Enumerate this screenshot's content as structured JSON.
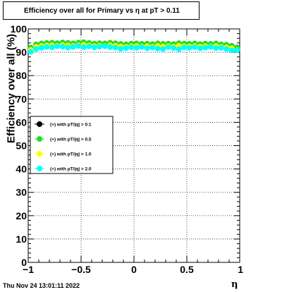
{
  "title": "Efficiency over all for Primary vs   η at pT > 0.11",
  "timestamp": "Thu Nov 24 13:01:11 2022",
  "chart_data": {
    "type": "scatter",
    "title": "Efficiency over all for Primary vs   η at pT > 0.11",
    "xlabel": "η",
    "ylabel": "Efficiency over all (%)",
    "xlim": [
      -1,
      1
    ],
    "ylim": [
      0,
      100
    ],
    "xticks": [
      "−1",
      "−0.5",
      "0",
      "0.5",
      "1"
    ],
    "yticks": [
      "0",
      "10",
      "20",
      "30",
      "40",
      "50",
      "60",
      "70",
      "80",
      "90",
      "100"
    ],
    "grid": true,
    "legend_position": "left-middle",
    "x": [
      -0.975,
      -0.925,
      -0.875,
      -0.825,
      -0.775,
      -0.725,
      -0.675,
      -0.625,
      -0.575,
      -0.525,
      -0.475,
      -0.425,
      -0.375,
      -0.325,
      -0.275,
      -0.225,
      -0.175,
      -0.125,
      -0.075,
      -0.025,
      0.025,
      0.075,
      0.125,
      0.175,
      0.225,
      0.275,
      0.325,
      0.375,
      0.425,
      0.475,
      0.525,
      0.575,
      0.625,
      0.675,
      0.725,
      0.775,
      0.825,
      0.875,
      0.925,
      0.975
    ],
    "series": [
      {
        "name": "(+) with pT/|q| > 0.1",
        "color": "#000000",
        "values": [
          91.8,
          93.2,
          93.6,
          93.8,
          93.9,
          93.7,
          94.0,
          93.8,
          93.6,
          93.9,
          94.1,
          93.8,
          93.5,
          93.7,
          93.6,
          93.9,
          93.7,
          93.4,
          93.2,
          93.5,
          93.6,
          93.4,
          93.5,
          93.3,
          93.6,
          93.4,
          93.5,
          93.3,
          93.7,
          93.5,
          93.4,
          93.6,
          93.3,
          93.5,
          93.4,
          93.6,
          93.2,
          93.0,
          92.6,
          91.9
        ]
      },
      {
        "name": "(+) with pT/|q| > 0.5",
        "color": "#22dd22",
        "values": [
          92.0,
          93.4,
          93.8,
          94.0,
          94.1,
          93.9,
          94.2,
          94.0,
          93.8,
          94.1,
          94.3,
          94.0,
          93.7,
          93.9,
          93.8,
          94.1,
          93.9,
          93.6,
          93.4,
          93.7,
          93.8,
          93.6,
          93.7,
          93.5,
          93.8,
          93.6,
          93.7,
          93.5,
          93.9,
          93.7,
          93.6,
          93.8,
          93.5,
          93.7,
          93.6,
          93.8,
          93.4,
          93.2,
          92.8,
          92.1
        ]
      },
      {
        "name": "(+) with pT/|q| > 1.0",
        "color": "#ffff00",
        "values": [
          91.0,
          92.3,
          92.7,
          92.9,
          93.0,
          92.8,
          93.1,
          92.9,
          92.7,
          93.0,
          93.2,
          92.9,
          92.6,
          92.8,
          92.7,
          93.0,
          92.8,
          92.5,
          92.3,
          92.6,
          92.7,
          92.5,
          92.6,
          92.4,
          92.7,
          92.5,
          92.6,
          92.4,
          92.8,
          92.6,
          92.5,
          92.7,
          92.4,
          92.6,
          92.5,
          92.7,
          92.3,
          92.1,
          91.7,
          91.0
        ]
      },
      {
        "name": "(+) with pT/|q| > 2.0",
        "color": "#00ffff",
        "values": [
          90.2,
          91.4,
          91.9,
          92.3,
          92.1,
          92.6,
          92.4,
          92.0,
          92.3,
          92.7,
          92.2,
          92.5,
          92.1,
          92.4,
          92.6,
          92.2,
          92.0,
          91.5,
          91.8,
          92.1,
          91.9,
          92.3,
          91.7,
          92.0,
          91.6,
          91.4,
          92.2,
          91.8,
          91.3,
          92.1,
          91.9,
          92.2,
          91.7,
          92.0,
          92.3,
          91.8,
          91.9,
          91.4,
          90.8,
          90.9
        ]
      }
    ]
  }
}
